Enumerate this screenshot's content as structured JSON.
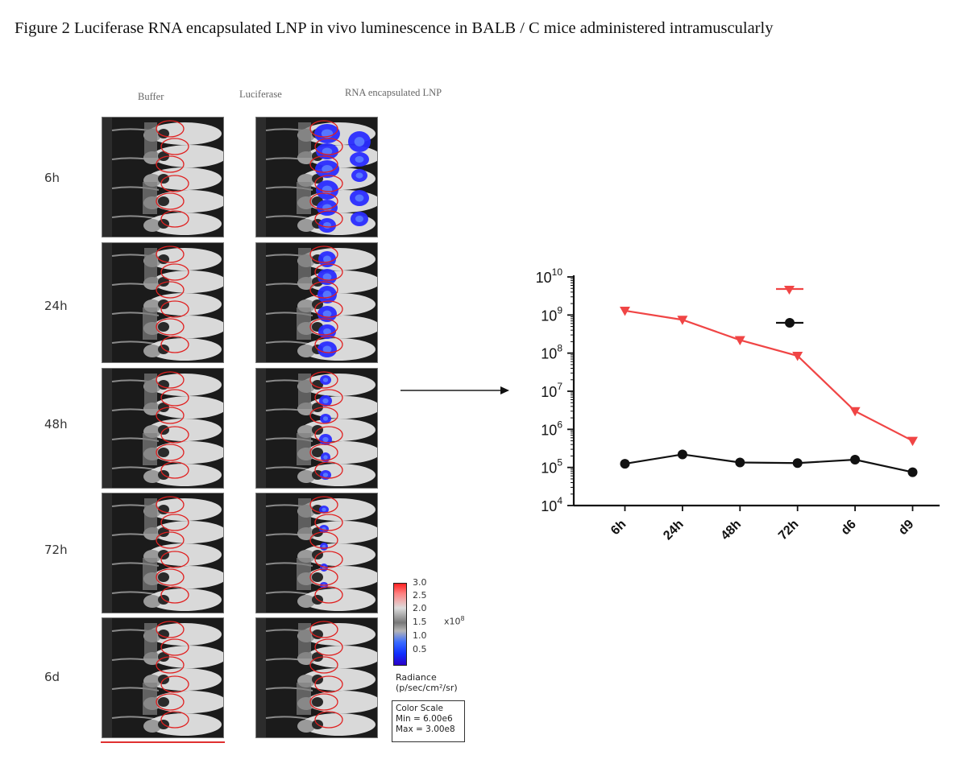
{
  "figure": {
    "title": "Figure 2 Luciferase RNA encapsulated LNP in vivo luminescence in BALB / C mice administered intramuscularly"
  },
  "columns": {
    "buffer": "Buffer",
    "luciferase": "Luciferase",
    "lnp": "RNA encapsulated LNP"
  },
  "time_points": [
    "6h",
    "24h",
    "48h",
    "72h",
    "6d"
  ],
  "color_scale": {
    "ticks": [
      "3.0",
      "2.5",
      "2.0",
      "1.5",
      "1.0",
      "0.5"
    ],
    "multiplier": "x10",
    "multiplier_exp": "8",
    "radiance_label": "Radiance",
    "radiance_unit": "(p/sec/cm²/sr)",
    "box_title": "Color Scale",
    "box_min": "Min = 6.00e6",
    "box_max": "Max = 3.00e8",
    "colors": {
      "high": "#ff2020",
      "low": "#1030ff"
    }
  },
  "chart_data": {
    "type": "line",
    "categories": [
      "6h",
      "24h",
      "48h",
      "72h",
      "d6",
      "d9"
    ],
    "y_scale": "log",
    "ylim": [
      10000,
      10000000000
    ],
    "y_ticks": [
      {
        "base": "10",
        "exp": "4",
        "value": 10000
      },
      {
        "base": "10",
        "exp": "5",
        "value": 100000
      },
      {
        "base": "10",
        "exp": "6",
        "value": 1000000
      },
      {
        "base": "10",
        "exp": "7",
        "value": 10000000
      },
      {
        "base": "10",
        "exp": "8",
        "value": 100000000
      },
      {
        "base": "10",
        "exp": "9",
        "value": 1000000000
      },
      {
        "base": "10",
        "exp": "10",
        "value": 10000000000
      }
    ],
    "legend_placement": "top-right",
    "grid": false,
    "series": [
      {
        "color": "#f04545",
        "marker": "triangle-down",
        "values": [
          1300000000,
          750000000,
          220000000,
          85000000,
          3000000,
          500000
        ]
      },
      {
        "color": "#111111",
        "marker": "circle",
        "values": [
          125000,
          220000,
          135000,
          130000,
          160000,
          75000
        ]
      }
    ]
  }
}
